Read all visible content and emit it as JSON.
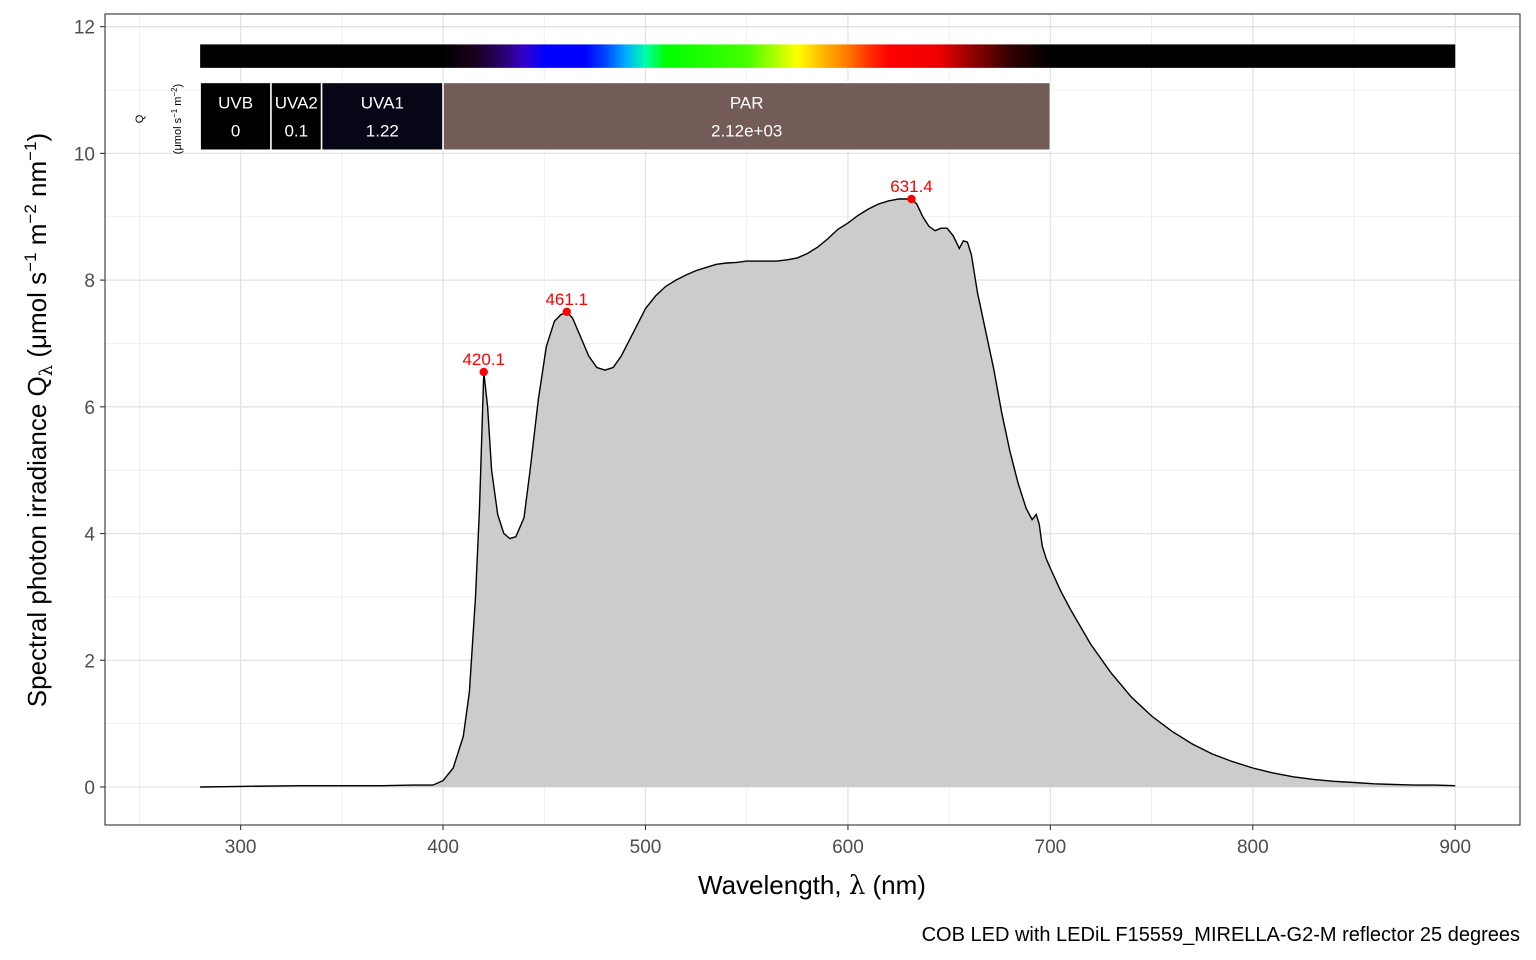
{
  "chart_data": {
    "type": "area",
    "xlabel": "Wavelength, λ (nm)",
    "xlabel_text": "Wavelength, ",
    "xlabel_symbol": "λ",
    "xlabel_unit": " (nm)",
    "ylabel": "Spectral photon irradiance Qλ (μmol s−1 m−2 nm−1)",
    "ylabel_text": "Spectral  photon  irradiance  Q",
    "ylabel_sub": "λ",
    "ylabel_unit_open": "  (μmol s",
    "ylabel_exp1": "−1",
    "ylabel_m": " m",
    "ylabel_exp2": "−2",
    "ylabel_nm": " nm",
    "ylabel_exp3": "−1",
    "ylabel_close": ")",
    "caption": "COB LED with  LEDiL F15559_MIRELLA-G2-M reflector 25 degrees",
    "xlim": [
      233,
      932
    ],
    "ylim": [
      -0.6,
      12.2
    ],
    "grid": true,
    "x_ticks": [
      300,
      400,
      500,
      600,
      700,
      800,
      900
    ],
    "y_ticks": [
      0,
      2,
      4,
      6,
      8,
      10,
      12
    ],
    "x_tick_labels": [
      "300",
      "400",
      "500",
      "600",
      "700",
      "800",
      "900"
    ],
    "y_tick_labels": [
      "0",
      "2",
      "4",
      "6",
      "8",
      "10",
      "12"
    ],
    "fill_color": "#cccccc",
    "line_color": "#000000",
    "peak_color": "#ff0000",
    "series": [
      {
        "x": [
          280,
          300,
          330,
          350,
          370,
          385,
          395,
          400,
          405,
          410,
          413,
          416,
          418,
          420.1,
          422,
          424,
          427,
          430,
          433,
          436,
          440,
          443,
          447,
          451,
          455,
          458,
          461.1,
          464,
          468,
          472,
          476,
          480,
          484,
          488,
          492,
          496,
          500,
          505,
          510,
          515,
          520,
          525,
          530,
          535,
          540,
          545,
          550,
          555,
          560,
          565,
          570,
          575,
          580,
          585,
          590,
          595,
          600,
          605,
          610,
          615,
          620,
          625,
          628,
          631.4,
          634,
          637,
          640,
          643,
          646,
          649,
          652,
          655,
          657,
          659,
          661,
          664,
          668,
          672,
          676,
          680,
          684,
          688,
          691,
          693,
          694.5,
          696,
          698,
          700,
          705,
          710,
          720,
          730,
          740,
          750,
          760,
          770,
          780,
          790,
          800,
          810,
          820,
          830,
          840,
          850,
          860,
          870,
          880,
          890,
          900
        ],
        "y": [
          0.0,
          0.01,
          0.02,
          0.02,
          0.02,
          0.03,
          0.03,
          0.1,
          0.3,
          0.8,
          1.5,
          3.0,
          4.4,
          6.55,
          6.0,
          5.0,
          4.3,
          4.0,
          3.92,
          3.95,
          4.25,
          5.0,
          6.1,
          6.95,
          7.35,
          7.45,
          7.5,
          7.4,
          7.1,
          6.8,
          6.62,
          6.58,
          6.62,
          6.8,
          7.05,
          7.3,
          7.55,
          7.75,
          7.9,
          8.0,
          8.08,
          8.15,
          8.2,
          8.25,
          8.27,
          8.28,
          8.3,
          8.3,
          8.3,
          8.3,
          8.32,
          8.35,
          8.42,
          8.52,
          8.65,
          8.8,
          8.9,
          9.02,
          9.12,
          9.2,
          9.25,
          9.28,
          9.28,
          9.28,
          9.2,
          9.0,
          8.85,
          8.78,
          8.82,
          8.82,
          8.7,
          8.5,
          8.62,
          8.6,
          8.4,
          7.8,
          7.2,
          6.6,
          5.9,
          5.3,
          4.8,
          4.4,
          4.22,
          4.3,
          4.15,
          3.8,
          3.6,
          3.45,
          3.1,
          2.8,
          2.25,
          1.8,
          1.42,
          1.12,
          0.88,
          0.68,
          0.52,
          0.4,
          0.3,
          0.22,
          0.16,
          0.12,
          0.09,
          0.07,
          0.05,
          0.04,
          0.03,
          0.03,
          0.02
        ]
      }
    ],
    "peaks": [
      {
        "x": 420.1,
        "y": 6.55,
        "label": "420.1"
      },
      {
        "x": 461.1,
        "y": 7.5,
        "label": "461.1"
      },
      {
        "x": 631.4,
        "y": 9.28,
        "label": "631.4"
      }
    ],
    "color_bar": {
      "range": [
        280,
        900
      ],
      "y_range": [
        11.35,
        11.72
      ],
      "stops": [
        {
          "nm": 280,
          "color": "#000000"
        },
        {
          "nm": 380,
          "color": "#000000"
        },
        {
          "nm": 400,
          "color": "#000000"
        },
        {
          "nm": 415,
          "color": "#1a001a"
        },
        {
          "nm": 430,
          "color": "#2a0070"
        },
        {
          "nm": 440,
          "color": "#3300cc"
        },
        {
          "nm": 450,
          "color": "#0000ff"
        },
        {
          "nm": 470,
          "color": "#0000ff"
        },
        {
          "nm": 480,
          "color": "#0044ff"
        },
        {
          "nm": 490,
          "color": "#00aaff"
        },
        {
          "nm": 500,
          "color": "#00ffaa"
        },
        {
          "nm": 510,
          "color": "#00ff00"
        },
        {
          "nm": 550,
          "color": "#44ff00"
        },
        {
          "nm": 575,
          "color": "#ffff00"
        },
        {
          "nm": 590,
          "color": "#ffaa00"
        },
        {
          "nm": 600,
          "color": "#ff7700"
        },
        {
          "nm": 610,
          "color": "#ff3300"
        },
        {
          "nm": 620,
          "color": "#ff0000"
        },
        {
          "nm": 645,
          "color": "#ee0000"
        },
        {
          "nm": 660,
          "color": "#990000"
        },
        {
          "nm": 680,
          "color": "#330000"
        },
        {
          "nm": 700,
          "color": "#000000"
        },
        {
          "nm": 900,
          "color": "#000000"
        }
      ]
    },
    "bands": {
      "axis_label": "Q",
      "axis_unit": "(μmol s",
      "axis_unit_exp1": "−1",
      "axis_unit_m": " m",
      "axis_unit_exp2": "−2",
      "axis_unit_close": ")",
      "y_range": [
        10.05,
        11.12
      ],
      "items": [
        {
          "name": "UVB",
          "value": "0",
          "start": 280,
          "end": 315,
          "color": "#000000"
        },
        {
          "name": "UVA2",
          "value": "0.1",
          "start": 315,
          "end": 340,
          "color": "#000000"
        },
        {
          "name": "UVA1",
          "value": "1.22",
          "start": 340,
          "end": 400,
          "color": "#060617"
        },
        {
          "name": "PAR",
          "value": "2.12e+03",
          "start": 400,
          "end": 700,
          "color": "#735c58"
        }
      ]
    }
  }
}
